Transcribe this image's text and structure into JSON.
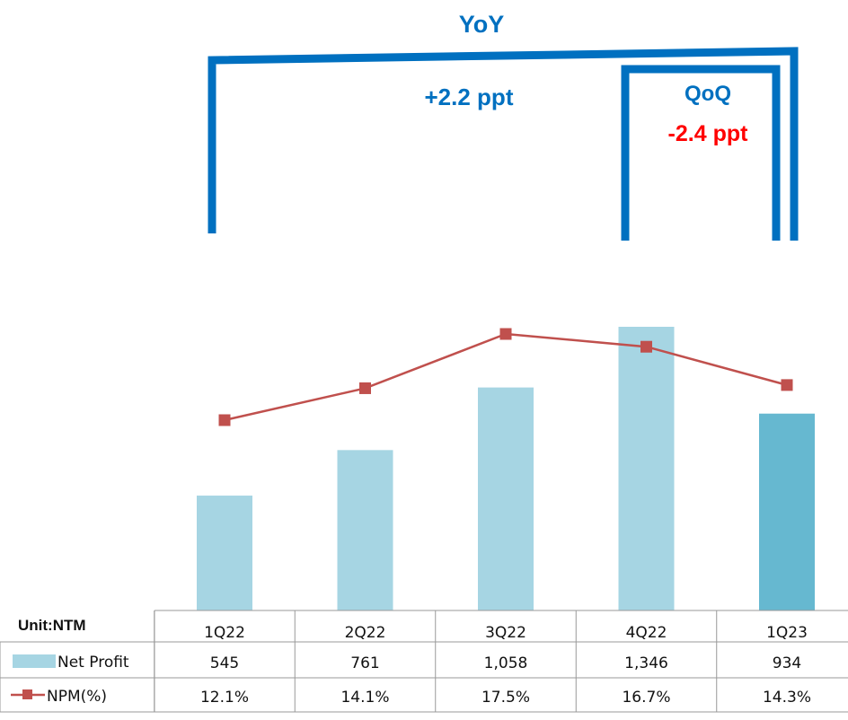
{
  "annotations": {
    "yoy_label": "YoY",
    "yoy_change": "+2.2 ppt",
    "qoq_label": "QoQ",
    "qoq_change": "-2.4 ppt",
    "bracket_color": "#0070C0",
    "qoq_change_color": "#FF0000"
  },
  "table": {
    "unit_label": "Unit:NTM",
    "rows": [
      {
        "label": "Net Profit",
        "values": [
          "545",
          "761",
          "1,058",
          "1,346",
          "934"
        ]
      },
      {
        "label": "NPM(%)",
        "values": [
          "12.1%",
          "14.1%",
          "17.5%",
          "16.7%",
          "14.3%"
        ]
      }
    ]
  },
  "chart_data": {
    "type": "bar",
    "categories": [
      "1Q22",
      "2Q22",
      "3Q22",
      "4Q22",
      "1Q23"
    ],
    "series": [
      {
        "name": "Net Profit",
        "type": "bar",
        "values": [
          545,
          761,
          1058,
          1346,
          934
        ],
        "color": "#A6D5E3",
        "highlight_color": "#66B8D0",
        "highlight_index": 4
      },
      {
        "name": "NPM(%)",
        "type": "line",
        "values": [
          12.1,
          14.1,
          17.5,
          16.7,
          14.3
        ],
        "color": "#C0504D"
      }
    ],
    "ylim_bar": [
      0,
      1346
    ],
    "ylim_line": [
      12.1,
      17.5
    ],
    "grid": false,
    "legend": "table-rows"
  }
}
